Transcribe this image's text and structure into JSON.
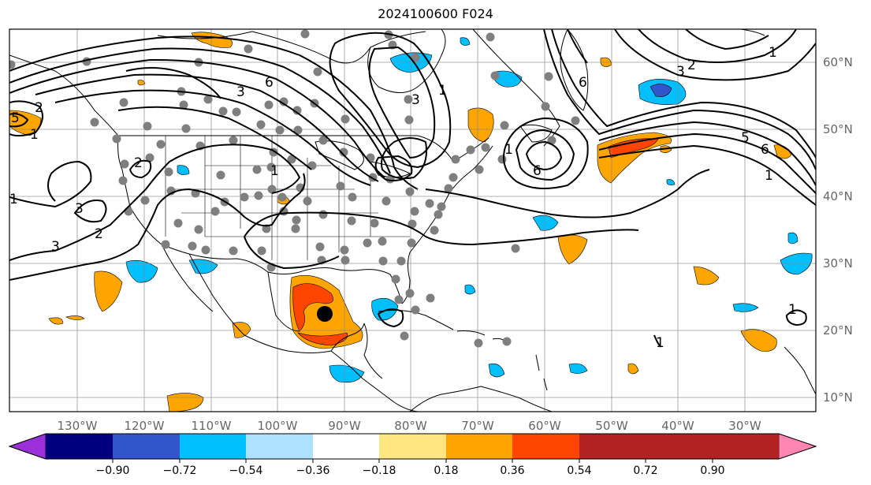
{
  "title": "2024100600 F024",
  "lon_labels": [
    "130°W",
    "120°W",
    "110°W",
    "100°W",
    "90°W",
    "80°W",
    "70°W",
    "60°W",
    "50°W",
    "40°W",
    "30°W"
  ],
  "lat_labels": [
    "60°N",
    "50°N",
    "40°N",
    "30°N",
    "20°N",
    "10°N"
  ],
  "colorbar": {
    "colors": [
      "#9b30d8",
      "#00007f",
      "#3355cc",
      "#00bfff",
      "#aee0ff",
      "#ffffff",
      "#ffe680",
      "#ffa500",
      "#ff4500",
      "#b22222",
      "#ff85b3"
    ],
    "ticks": [
      "−0.90",
      "−0.72",
      "−0.54",
      "−0.36",
      "−0.18",
      "0.18",
      "0.36",
      "0.54",
      "0.72",
      "0.90"
    ]
  },
  "contour_labels": {
    "pacific_high": "3",
    "pacific_2": "2",
    "sw_3": "3",
    "sw_2": "2",
    "sw_3b": "3",
    "greatlakes_3": "3",
    "plains_1": "1",
    "canada_6": "6",
    "hudson_1": "1",
    "ne_3": "3",
    "labrador_6": "6",
    "atl_low_6": "6",
    "atl_low_1": "1",
    "north_3": "3",
    "north_2": "2",
    "north_1": "1",
    "east_5": "5",
    "east_6": "6",
    "east_1": "1",
    "carib_1": "1",
    "east_atl_1": "1",
    "west_5": "5",
    "west_1": "1",
    "west_2": "2"
  }
}
